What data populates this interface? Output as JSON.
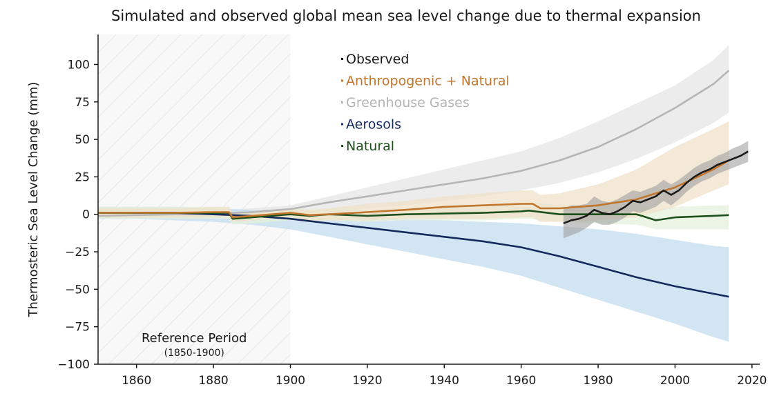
{
  "chart_data": {
    "type": "line",
    "title": "Simulated and observed global mean sea level change due to thermal expansion",
    "ylabel": "Thermosteric Sea Level Change (mm)",
    "xlabel": "",
    "xlim": [
      1850,
      2022
    ],
    "ylim": [
      -100,
      120
    ],
    "xticks": [
      1860,
      1880,
      1900,
      1920,
      1940,
      1960,
      1980,
      2000,
      2020
    ],
    "yticks": [
      100,
      75,
      50,
      25,
      0,
      -25,
      -50,
      -75,
      -100
    ],
    "ytick_labels": [
      "100",
      "75",
      "50",
      "25",
      "0",
      "−25",
      "−50",
      "−75",
      "−100"
    ],
    "legend_position": "top-center",
    "reference_period": {
      "label": "Reference Period",
      "sublabel": "(1850-1900)",
      "range": [
        1850,
        1900
      ]
    },
    "series": [
      {
        "name": "Greenhouse Gases",
        "color": "#b5b5b5",
        "band_color": "#e6e6e6",
        "x": [
          1850,
          1860,
          1870,
          1880,
          1890,
          1900,
          1910,
          1920,
          1930,
          1940,
          1950,
          1960,
          1970,
          1980,
          1990,
          2000,
          2010,
          2014
        ],
        "y": [
          -1,
          -0.5,
          0,
          0.5,
          1.5,
          3.5,
          8,
          12,
          16,
          20,
          24,
          29,
          36,
          45,
          57,
          71,
          87,
          96
        ],
        "lower": [
          -3,
          -2.5,
          -2,
          -1.5,
          -1,
          0,
          2,
          4,
          6,
          9,
          12,
          16,
          21,
          28,
          37,
          48,
          61,
          68
        ],
        "upper": [
          1,
          1.5,
          2,
          2.5,
          4,
          6,
          12,
          18,
          24,
          30,
          36,
          42,
          51,
          62,
          74,
          86,
          103,
          113
        ]
      },
      {
        "name": "Aerosols",
        "color": "#14295c",
        "band_color": "#c3dced",
        "x": [
          1850,
          1860,
          1870,
          1880,
          1890,
          1900,
          1910,
          1920,
          1930,
          1940,
          1950,
          1960,
          1970,
          1980,
          1990,
          2000,
          2010,
          2014
        ],
        "y": [
          1,
          1,
          1,
          0,
          -1,
          -3,
          -6,
          -9,
          -12,
          -15,
          -18,
          -22,
          -28,
          -35,
          -42,
          -48,
          -53,
          -55
        ],
        "lower": [
          -3,
          -3,
          -4,
          -5,
          -7,
          -10,
          -15,
          -20,
          -25,
          -30,
          -35,
          -41,
          -49,
          -57,
          -65,
          -73,
          -82,
          -85
        ],
        "upper": [
          5,
          5,
          5,
          4,
          3,
          2,
          0,
          -1,
          -3,
          -4,
          -5,
          -6,
          -8,
          -10,
          -13,
          -17,
          -21,
          -22
        ]
      },
      {
        "name": "Natural",
        "color": "#1d4f1c",
        "band_color": "#e5f0dc",
        "x": [
          1850,
          1860,
          1870,
          1880,
          1884,
          1885,
          1890,
          1900,
          1905,
          1910,
          1920,
          1930,
          1940,
          1950,
          1960,
          1962,
          1970,
          1980,
          1990,
          1992,
          1995,
          2000,
          2010,
          2014
        ],
        "y": [
          1,
          1,
          1,
          1,
          1,
          -3,
          -2,
          0,
          -1,
          0,
          -1,
          0,
          0.5,
          1,
          2,
          2.5,
          0,
          0,
          0,
          -1.5,
          -4,
          -2,
          -1,
          -0.5
        ],
        "lower": [
          -3,
          -3,
          -3,
          -3,
          -3,
          -7,
          -6,
          -4,
          -5,
          -4,
          -5,
          -4,
          -4,
          -4,
          -3,
          -3,
          -5,
          -6,
          -7,
          -8,
          -10,
          -10,
          -10,
          -10
        ],
        "upper": [
          5,
          5,
          5,
          5,
          5,
          1,
          2,
          4,
          3,
          4,
          3,
          4,
          5,
          6,
          7,
          8,
          6,
          6,
          6,
          5,
          3,
          5,
          6,
          6
        ]
      },
      {
        "name": "Anthropogenic + Natural",
        "color": "#c0762c",
        "band_color": "#efe2c8",
        "x": [
          1850,
          1860,
          1870,
          1880,
          1884,
          1885,
          1890,
          1900,
          1905,
          1910,
          1920,
          1930,
          1940,
          1950,
          1960,
          1963,
          1965,
          1970,
          1980,
          1990,
          2000,
          2010,
          2014
        ],
        "y": [
          1,
          1,
          1,
          1.5,
          1.5,
          -2,
          -1,
          1,
          -0.5,
          0,
          1.5,
          3,
          5,
          6,
          7,
          7,
          4,
          4,
          6,
          10,
          18,
          30,
          36
        ],
        "lower": [
          -2,
          -2,
          -2,
          -2,
          -2,
          -5,
          -4,
          -2,
          -4,
          -4,
          -4,
          -3,
          -3,
          -3,
          -2,
          -2,
          -5,
          -5,
          -4,
          -2,
          5,
          16,
          20
        ],
        "upper": [
          4,
          4,
          4,
          5,
          5,
          1,
          2,
          4,
          3,
          4,
          7,
          9,
          12,
          14,
          16,
          16,
          13,
          14,
          20,
          30,
          45,
          57,
          62
        ]
      },
      {
        "name": "Observed",
        "color": "#1a1a1a",
        "band_color": "#a0a0a0",
        "x": [
          1971,
          1973,
          1975,
          1977,
          1979,
          1981,
          1983,
          1985,
          1987,
          1989,
          1991,
          1993,
          1995,
          1997,
          1999,
          2001,
          2003,
          2005,
          2007,
          2009,
          2011,
          2013,
          2015,
          2017,
          2019
        ],
        "y": [
          -6,
          -4,
          -3,
          -1,
          3,
          1,
          0,
          2,
          5,
          9,
          8,
          10,
          12,
          16,
          13,
          16,
          21,
          25,
          28,
          30,
          33,
          35,
          37,
          39,
          42
        ],
        "lower": [
          -16,
          -14,
          -12,
          -9,
          -5,
          -7,
          -7,
          -5,
          -2,
          2,
          1,
          3,
          5,
          9,
          6,
          10,
          15,
          19,
          22,
          24,
          27,
          29,
          31,
          33,
          35
        ],
        "upper": [
          4,
          6,
          6,
          7,
          12,
          9,
          8,
          10,
          13,
          16,
          15,
          17,
          19,
          23,
          20,
          23,
          27,
          31,
          34,
          36,
          39,
          41,
          44,
          46,
          49
        ]
      }
    ],
    "legend": [
      {
        "name": "Observed",
        "color": "#1a1a1a"
      },
      {
        "name": "Anthropogenic + Natural",
        "color": "#c0762c"
      },
      {
        "name": "Greenhouse Gases",
        "color": "#b5b5b5"
      },
      {
        "name": "Aerosols",
        "color": "#14295c"
      },
      {
        "name": "Natural",
        "color": "#1d4f1c"
      }
    ]
  }
}
